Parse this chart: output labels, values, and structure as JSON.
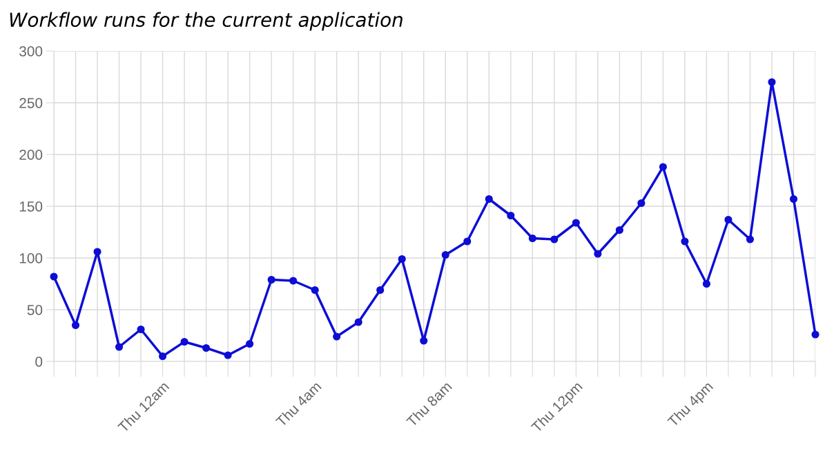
{
  "chart_data": {
    "type": "line",
    "title": "Workflow runs for the current application",
    "categories": [
      null,
      null,
      null,
      null,
      null,
      "Thu 12am",
      null,
      null,
      null,
      null,
      null,
      null,
      "Thu 4am",
      null,
      null,
      null,
      null,
      null,
      "Thu 8am",
      null,
      null,
      null,
      null,
      null,
      "Thu 12pm",
      null,
      null,
      null,
      null,
      null,
      "Thu 4pm",
      null,
      null,
      null,
      null,
      null
    ],
    "series": [
      {
        "color": "#0d0dd6",
        "values": [
          82,
          35,
          106,
          14,
          31,
          5,
          19,
          13,
          6,
          17,
          79,
          78,
          69,
          24,
          38,
          69,
          99,
          20,
          103,
          116,
          157,
          141,
          119,
          118,
          134,
          104,
          127,
          153,
          188,
          116,
          75,
          137,
          118,
          270,
          157,
          26
        ]
      }
    ],
    "ylim": [
      0,
      300
    ],
    "yticks": [
      0,
      50,
      100,
      150,
      200,
      250,
      300
    ],
    "grid": true,
    "legend": false,
    "marker": "circle",
    "line_style": "solid"
  }
}
